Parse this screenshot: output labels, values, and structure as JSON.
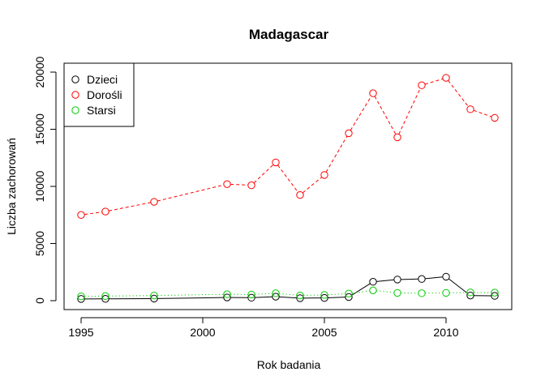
{
  "chart_data": {
    "type": "line",
    "title": "Madagascar",
    "xlabel": "Rok badania",
    "ylabel": "Liczba zachorowań",
    "xlim": [
      1994.3,
      2012.7
    ],
    "ylim": [
      -780,
      20780
    ],
    "x_ticks": [
      1995,
      2000,
      2005,
      2010
    ],
    "y_ticks": [
      0,
      5000,
      10000,
      15000,
      20000
    ],
    "x_tick_labels": [
      "1995",
      "2000",
      "2005",
      "2010"
    ],
    "y_tick_labels": [
      "0",
      "5000",
      "10000",
      "15000",
      "20000"
    ],
    "grid": false,
    "legend_position": "top-left",
    "x": [
      1995,
      1996,
      1998,
      2001,
      2002,
      2003,
      2004,
      2005,
      2006,
      2007,
      2008,
      2009,
      2010,
      2011,
      2012
    ],
    "series": [
      {
        "name": "Dzieci",
        "color": "#000000",
        "dash": "solid",
        "values": [
          150,
          160,
          180,
          280,
          260,
          350,
          220,
          240,
          320,
          1650,
          1850,
          1900,
          2100,
          450,
          420
        ]
      },
      {
        "name": "Dorośli",
        "color": "#ff0000",
        "dash": "dashed",
        "values": [
          7500,
          7800,
          8650,
          10200,
          10100,
          12100,
          9250,
          11000,
          14650,
          18150,
          14300,
          18850,
          19500,
          16750,
          16000
        ]
      },
      {
        "name": "Starsi",
        "color": "#00cd00",
        "dash": "dotted",
        "values": [
          380,
          400,
          450,
          560,
          540,
          650,
          460,
          500,
          620,
          900,
          680,
          650,
          680,
          720,
          700
        ]
      }
    ]
  }
}
